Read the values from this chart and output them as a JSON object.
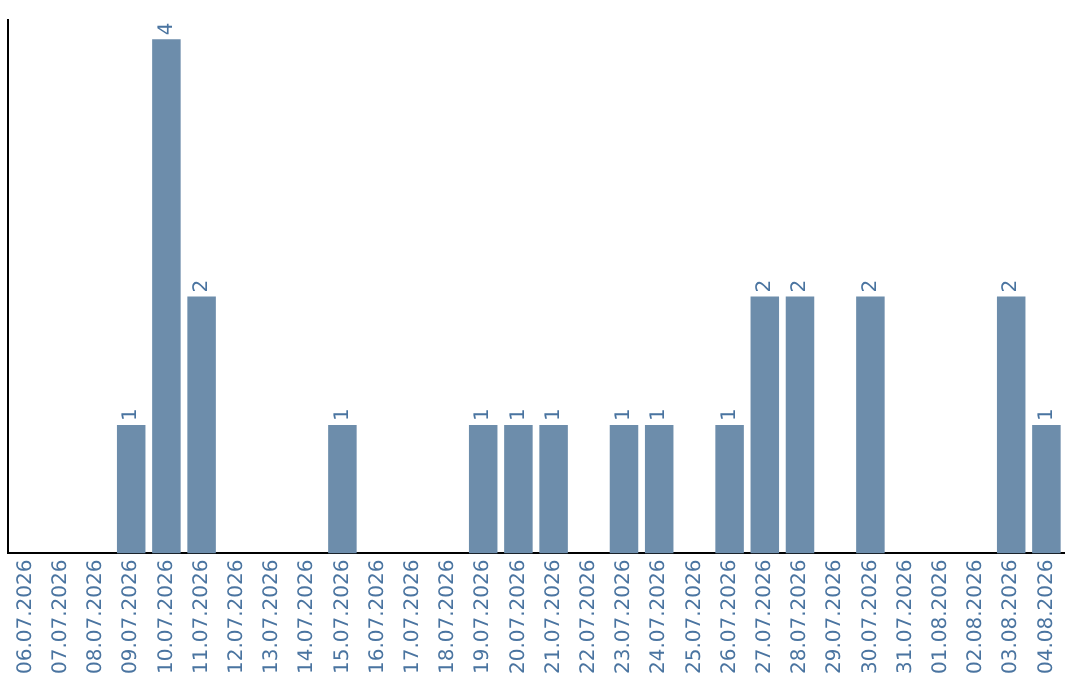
{
  "chart_data": {
    "type": "bar",
    "categories": [
      "06.07.2026",
      "07.07.2026",
      "08.07.2026",
      "09.07.2026",
      "10.07.2026",
      "11.07.2026",
      "12.07.2026",
      "13.07.2026",
      "14.07.2026",
      "15.07.2026",
      "16.07.2026",
      "17.07.2026",
      "18.07.2026",
      "19.07.2026",
      "20.07.2026",
      "21.07.2026",
      "22.07.2026",
      "23.07.2026",
      "24.07.2026",
      "25.07.2026",
      "26.07.2026",
      "27.07.2026",
      "28.07.2026",
      "29.07.2026",
      "30.07.2026",
      "31.07.2026",
      "01.08.2026",
      "02.08.2026",
      "03.08.2026",
      "04.08.2026"
    ],
    "values": [
      0,
      0,
      0,
      1,
      4,
      2,
      0,
      0,
      0,
      1,
      0,
      0,
      0,
      1,
      1,
      1,
      0,
      1,
      1,
      0,
      1,
      2,
      2,
      0,
      2,
      0,
      0,
      0,
      2,
      1
    ],
    "value_labels": [
      null,
      null,
      null,
      "1",
      "4",
      "2",
      null,
      null,
      null,
      "1",
      null,
      null,
      null,
      "1",
      "1",
      "1",
      null,
      "1",
      "1",
      null,
      "1",
      "2",
      "2",
      null,
      "2",
      null,
      null,
      null,
      "2",
      "1"
    ],
    "color": "#6d8dab",
    "ylim": [
      0,
      4.15
    ],
    "tick_labels": "x",
    "grid": false,
    "legend": false
  }
}
